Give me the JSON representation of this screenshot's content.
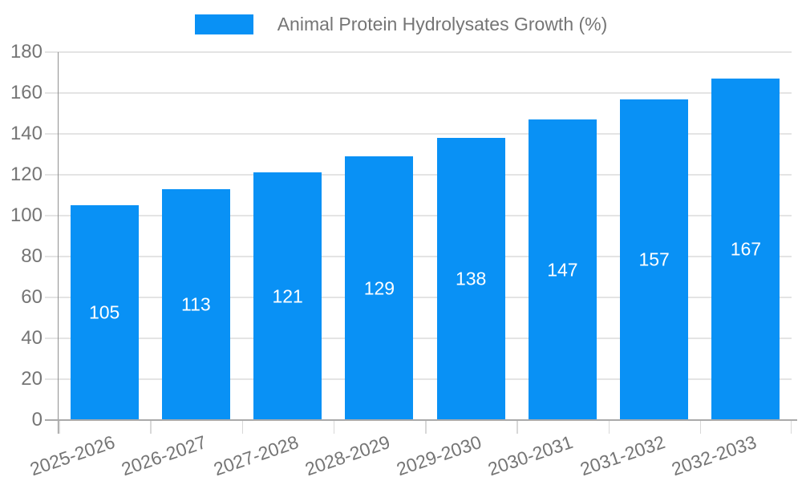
{
  "legend": {
    "label": "Animal Protein Hydrolysates Growth (%)"
  },
  "colors": {
    "bar": "#0991f5",
    "grid": "#e4e4e4",
    "axis": "#9e9e9e",
    "tick_text": "#757575",
    "value_text": "#ffffff",
    "background": "#ffffff"
  },
  "chart_data": {
    "type": "bar",
    "title": "Animal Protein Hydrolysates Growth (%)",
    "categories": [
      "2025-2026",
      "2026-2027",
      "2027-2028",
      "2028-2029",
      "2029-2030",
      "2030-2031",
      "2031-2032",
      "2032-2033"
    ],
    "values": [
      105,
      113,
      121,
      129,
      138,
      147,
      157,
      167
    ],
    "xlabel": "",
    "ylabel": "",
    "ylim": [
      0,
      180
    ],
    "yticks": [
      0,
      20,
      40,
      60,
      80,
      100,
      120,
      140,
      160,
      180
    ],
    "grid": true,
    "legend_position": "top",
    "value_labels": "inside-center",
    "x_label_rotation_deg": -19
  }
}
